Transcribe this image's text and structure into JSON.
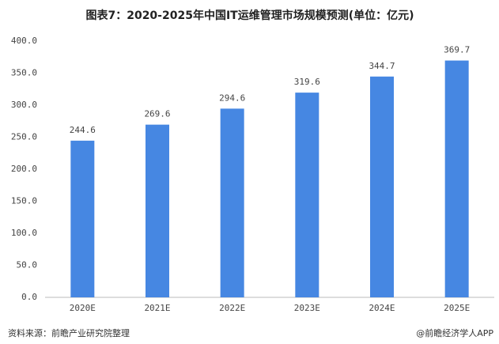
{
  "chart_data": {
    "type": "bar",
    "title": "图表7：2020-2025年中国IT运维管理市场规模预测(单位：亿元)",
    "categories": [
      "2020E",
      "2021E",
      "2022E",
      "2023E",
      "2024E",
      "2025E"
    ],
    "values": [
      244.6,
      269.6,
      294.6,
      319.6,
      344.7,
      369.7
    ],
    "color": "#4687e2",
    "ylim": [
      0,
      400
    ],
    "yticks": [
      {
        "value": 0,
        "label": "0.0"
      },
      {
        "value": 50,
        "label": "50.0"
      },
      {
        "value": 100,
        "label": "100.0"
      },
      {
        "value": 150,
        "label": "150.0"
      },
      {
        "value": 200,
        "label": "200.0"
      },
      {
        "value": 250,
        "label": "250.0"
      },
      {
        "value": 300,
        "label": "300.0"
      },
      {
        "value": 350,
        "label": "350.0"
      },
      {
        "value": 400,
        "label": "400.0"
      }
    ],
    "grid": false,
    "source": "资料来源：前瞻产业研究院整理",
    "credit": "@前瞻经济学人APP"
  }
}
